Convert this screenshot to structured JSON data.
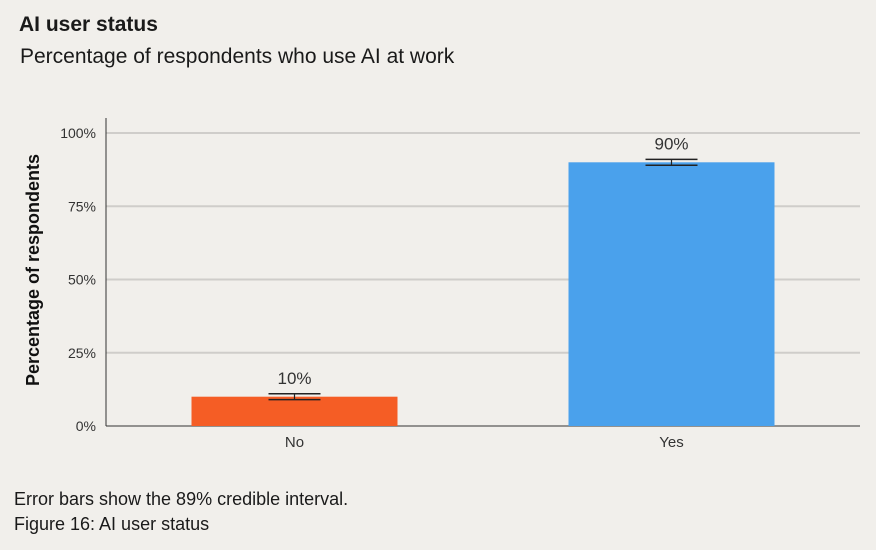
{
  "chart_data": {
    "type": "bar",
    "title": "AI user status",
    "subtitle": "Percentage of respondents who use AI at work",
    "xlabel": "",
    "ylabel": "Percentage of respondents",
    "categories": [
      "No",
      "Yes"
    ],
    "values": [
      10,
      90
    ],
    "data_labels": [
      "10%",
      "90%"
    ],
    "error_bars": [
      [
        9,
        11
      ],
      [
        89,
        91
      ]
    ],
    "colors": [
      "#f55d25",
      "#4aa1ec"
    ],
    "ylim": [
      0,
      100
    ],
    "yticks": [
      0,
      25,
      50,
      75,
      100
    ],
    "ytick_labels": [
      "0%",
      "25%",
      "50%",
      "75%",
      "100%"
    ],
    "grid": true,
    "legend": "none"
  },
  "footer": {
    "note": "Error bars show the 89% credible interval.",
    "caption": "Figure 16: AI user status"
  }
}
